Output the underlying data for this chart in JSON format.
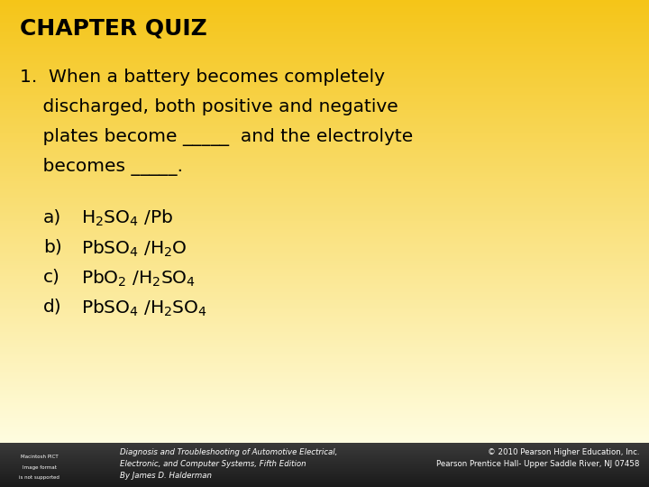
{
  "title": "CHAPTER QUIZ",
  "bg_top_color": "#F5C518",
  "bg_bottom_color": "#FFFDE0",
  "footer_bg_color": "#2A2A2A",
  "footer_left": [
    "Diagnosis and Troubleshooting of Automotive Electrical,",
    "Electronic, and Computer Systems, Fifth Edition",
    "By James D. Halderman"
  ],
  "footer_right": [
    "© 2010 Pearson Higher Education, Inc.",
    "Pearson Prentice Hall- Upper Saddle River, NJ 07458"
  ],
  "question_lines": [
    "1.  When a battery becomes completely",
    "    discharged, both positive and negative",
    "    plates become _____  and the electrolyte",
    "    becomes _____.  "
  ],
  "option_labels": [
    "a)",
    "b)",
    "c)",
    "d)"
  ],
  "option_formulas": [
    "H$_2$SO$_4$ /Pb",
    "PbSO$_4$ /H$_2$O",
    "PbO$_2$ /H$_2$SO$_4$",
    "PbSO$_4$ /H$_2$SO$_4$"
  ],
  "title_fontsize": 18,
  "question_fontsize": 14.5,
  "option_fontsize": 14.5,
  "footer_fontsize": 6.2
}
